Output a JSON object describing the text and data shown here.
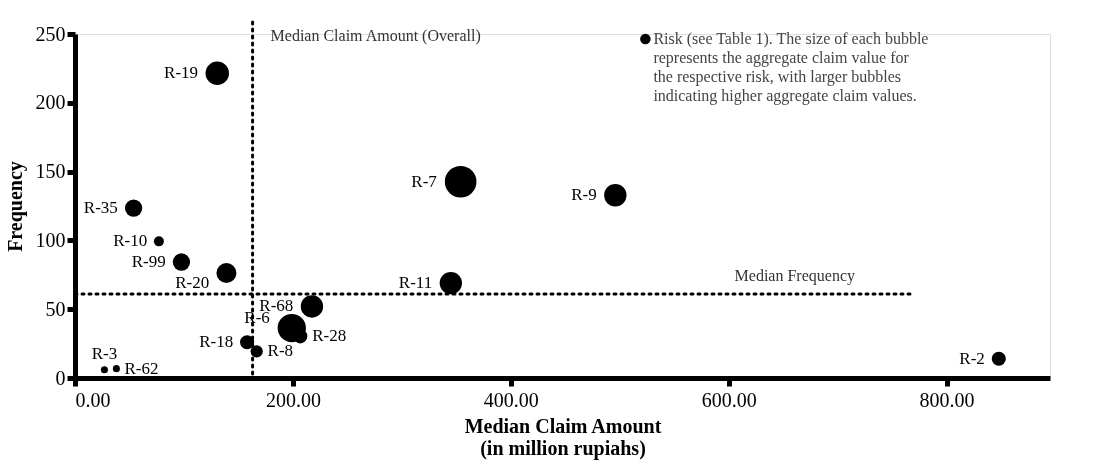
{
  "chart_data": {
    "type": "bubble",
    "xlabel": "Median Claim Amount\n(in million rupiahs)",
    "ylabel": "Frequency",
    "x": [
      130.6,
      53.8,
      77,
      97.7,
      139,
      217.5,
      199,
      206.8,
      158,
      166.8,
      27,
      38,
      354,
      496,
      345,
      848
    ],
    "series": [
      {
        "name": "Risk (see Table 1). The size of each bubble\nrepresents the aggregate claim value for\nthe respective risk, with larger bubbles\nindicating higher aggregate claim values.",
        "color": "#000000",
        "values": [
          221.5,
          123.5,
          99.3,
          84.3,
          76.3,
          52,
          36.3,
          30.3,
          26,
          19.4,
          6,
          6.8,
          142.6,
          132.8,
          69,
          14
        ],
        "sizes": [
          0.55,
          0.3,
          0.1,
          0.3,
          0.4,
          0.5,
          0.8,
          0.2,
          0.2,
          0.15,
          0.05,
          0.05,
          1,
          0.5,
          0.5,
          0.2
        ]
      }
    ],
    "annotations": [
      {
        "text": "R-19",
        "x": 130.6,
        "y": 221.5
      },
      {
        "text": "R-35",
        "x": 53.8,
        "y": 123.5
      },
      {
        "text": "R-10",
        "x": 77,
        "y": 99.3
      },
      {
        "text": "R-99",
        "x": 97.7,
        "y": 84.3
      },
      {
        "text": "R-20",
        "x": 139,
        "y": 76.3
      },
      {
        "text": "R-68",
        "x": 217.5,
        "y": 52
      },
      {
        "text": "R-6",
        "x": 199,
        "y": 36.3
      },
      {
        "text": "R-28",
        "x": 206.8,
        "y": 30.3
      },
      {
        "text": "R-18",
        "x": 158,
        "y": 26
      },
      {
        "text": "R-8",
        "x": 166.8,
        "y": 19.4
      },
      {
        "text": "R-3",
        "x": 27,
        "y": 6
      },
      {
        "text": "R-62",
        "x": 38,
        "y": 6.8
      },
      {
        "text": "R-7",
        "x": 354,
        "y": 142.6
      },
      {
        "text": "R-9",
        "x": 496,
        "y": 132.8
      },
      {
        "text": "R-11",
        "x": 345,
        "y": 69
      },
      {
        "text": "R-2",
        "x": 848,
        "y": 14
      }
    ],
    "ref_lines": [
      {
        "axis": "x",
        "value": 163,
        "label": "Median Claim Amount (Overall)",
        "line_style": "dotted"
      },
      {
        "axis": "y",
        "value": 61,
        "label": "Median  Frequency",
        "line_style": "dotted"
      }
    ],
    "xlim": [
      0,
      895
    ],
    "xticks": [
      {
        "value": 0,
        "label": "0.00"
      },
      {
        "value": 200,
        "label": "200.00"
      },
      {
        "value": 400,
        "label": "400.00"
      },
      {
        "value": 600,
        "label": "600.00"
      },
      {
        "value": 800,
        "label": "800.00"
      }
    ],
    "ylim": [
      0,
      250
    ],
    "yticks": [
      0,
      50,
      100,
      150,
      200,
      250
    ],
    "grid": false,
    "legend": "top right"
  }
}
